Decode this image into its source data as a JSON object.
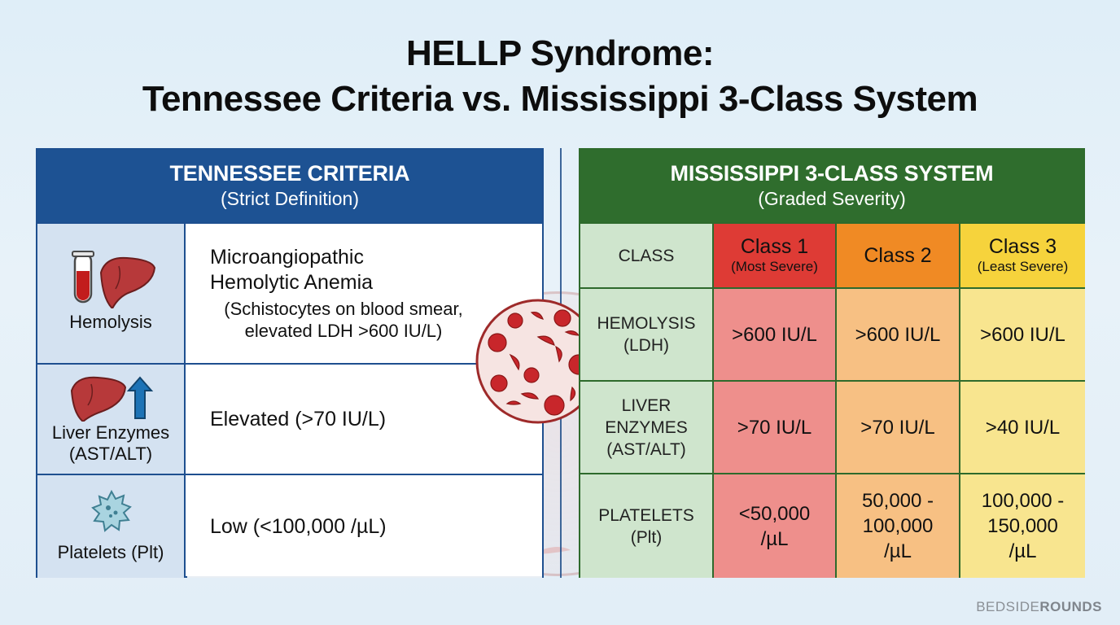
{
  "title": {
    "line1": "HELLP Syndrome:",
    "line2": "Tennessee Criteria vs. Mississippi 3-Class System"
  },
  "tennessee": {
    "heading": "TENNESSEE CRITERIA",
    "subheading": "(Strict Definition)",
    "rows": [
      {
        "label": "Hemolysis",
        "main_line1": "Microangiopathic",
        "main_line2": "Hemolytic Anemia",
        "sub_line1": "(Schistocytes on blood smear,",
        "sub_line2": "elevated LDH >600 IU/L)",
        "icons": [
          "test-tube-icon",
          "liver-icon"
        ]
      },
      {
        "label_line1": "Liver Enzymes",
        "label_line2": "(AST/ALT)",
        "main": "Elevated (>70 IU/L)",
        "icons": [
          "liver-icon",
          "arrow-up-icon"
        ]
      },
      {
        "label": "Platelets (Plt)",
        "main": "Low (<100,000 /µL)",
        "icons": [
          "platelet-icon"
        ]
      }
    ]
  },
  "mississippi": {
    "heading": "MISSISSIPPI 3-CLASS SYSTEM",
    "subheading": "(Graded Severity)",
    "class_header": "CLASS",
    "classes": [
      {
        "name": "Class 1",
        "note": "(Most Severe)"
      },
      {
        "name": "Class 2",
        "note": ""
      },
      {
        "name": "Class 3",
        "note": "(Least Severe)"
      }
    ],
    "rows": [
      {
        "label_lines": [
          "HEMOLYSIS",
          "(LDH)"
        ],
        "values": [
          [
            ">600 IU/L"
          ],
          [
            ">600 IU/L"
          ],
          [
            ">600 IU/L"
          ]
        ]
      },
      {
        "label_lines": [
          "LIVER",
          "ENZYMES",
          "(AST/ALT)"
        ],
        "values": [
          [
            ">70 IU/L"
          ],
          [
            ">70 IU/L"
          ],
          [
            ">40 IU/L"
          ]
        ]
      },
      {
        "label_lines": [
          "PLATELETS",
          "(Plt)"
        ],
        "values": [
          [
            "<50,000",
            "/µL"
          ],
          [
            "50,000 -",
            "100,000",
            "/µL"
          ],
          [
            "100,000 -",
            "150,000",
            "/µL"
          ]
        ]
      }
    ],
    "colors": {
      "label_col": "#cfe5cd",
      "class1_header": "#de3b35",
      "class2_header": "#f08a24",
      "class3_header": "#f6d33c",
      "class1_body": "#ee8f8c",
      "class2_body": "#f7c083",
      "class3_body": "#f8e58f"
    }
  },
  "brand": {
    "light": "BEDSIDE",
    "bold": "ROUNDS"
  }
}
